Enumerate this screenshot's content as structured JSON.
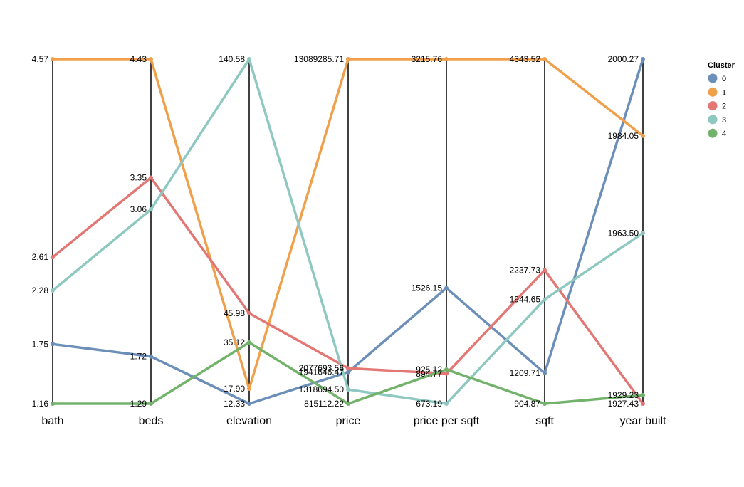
{
  "chart_data": {
    "type": "parallel-coordinates",
    "axes": [
      "bath",
      "beds",
      "elevation",
      "price",
      "price per sqft",
      "sqft",
      "year built"
    ],
    "axis_ranges": [
      [
        1.16,
        4.57
      ],
      [
        1.29,
        4.43
      ],
      [
        12.33,
        140.58
      ],
      [
        815112.22,
        13089285.71
      ],
      [
        673.19,
        3215.76
      ],
      [
        904.87,
        4343.52
      ],
      [
        1927.43,
        2000.27
      ]
    ],
    "legend": {
      "title": "Cluster",
      "placement": "top-right"
    },
    "series": [
      {
        "name": "0",
        "color": "#6b8fb8",
        "values": [
          1.75,
          1.72,
          12.33,
          1941646.47,
          1526.15,
          1209.71,
          2000.27
        ],
        "labels": [
          "1.75",
          "1.72",
          "12.33",
          "1941646.47",
          "1526.15",
          "1209.71",
          "2000.27"
        ]
      },
      {
        "name": "1",
        "color": "#f0a04b",
        "values": [
          4.57,
          4.43,
          17.9,
          13089285.71,
          3215.76,
          4343.52,
          1984.05
        ],
        "labels": [
          "4.57",
          "4.43",
          "17.90",
          "13089285.71",
          "3215.76",
          "4343.52",
          "1984.05"
        ]
      },
      {
        "name": "2",
        "color": "#e27774",
        "values": [
          2.61,
          3.35,
          45.98,
          2077693.56,
          894.77,
          2237.73,
          1927.43
        ],
        "labels": [
          "2.61",
          "3.35",
          "45.98",
          "2077693.56",
          "894.77",
          "2237.73",
          "1927.43"
        ]
      },
      {
        "name": "3",
        "color": "#8fc8c1",
        "values": [
          2.28,
          3.06,
          140.58,
          1318694.5,
          673.19,
          1944.65,
          1963.5
        ],
        "labels": [
          "2.28",
          "3.06",
          "140.58",
          "1318694.50",
          "673.19",
          "1944.65",
          "1963.50"
        ]
      },
      {
        "name": "4",
        "color": "#72b26b",
        "values": [
          1.16,
          1.29,
          35.12,
          815112.22,
          925.12,
          904.87,
          1929.23
        ],
        "labels": [
          "1.16",
          "1.29",
          "35.12",
          "815112.22",
          "925.12",
          "904.87",
          "1929.23"
        ]
      }
    ]
  }
}
